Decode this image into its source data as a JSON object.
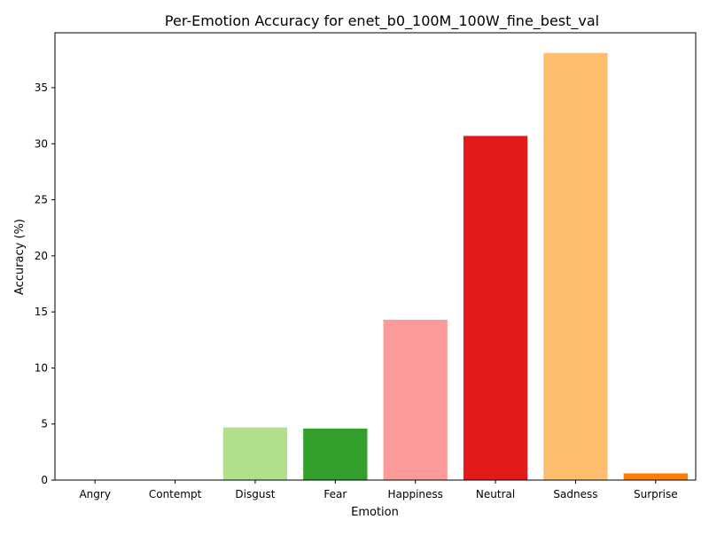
{
  "chart_data": {
    "type": "bar",
    "title": "Per-Emotion Accuracy for enet_b0_100M_100W_fine_best_val",
    "xlabel": "Emotion",
    "ylabel": "Accuracy (%)",
    "categories": [
      "Angry",
      "Contempt",
      "Disgust",
      "Fear",
      "Happiness",
      "Neutral",
      "Sadness",
      "Surprise"
    ],
    "values": [
      0.0,
      0.0,
      4.7,
      4.6,
      14.3,
      30.7,
      38.1,
      0.6
    ],
    "colors": [
      "#a6cee3",
      "#1f78b4",
      "#b2df8a",
      "#33a02c",
      "#fb9a99",
      "#e31a1c",
      "#fdbf6f",
      "#ff7f00"
    ],
    "yticks": [
      "0",
      "5",
      "10",
      "15",
      "20",
      "25",
      "30",
      "35"
    ],
    "ylim": [
      0,
      39.9
    ],
    "grid": false,
    "legend": "none"
  }
}
